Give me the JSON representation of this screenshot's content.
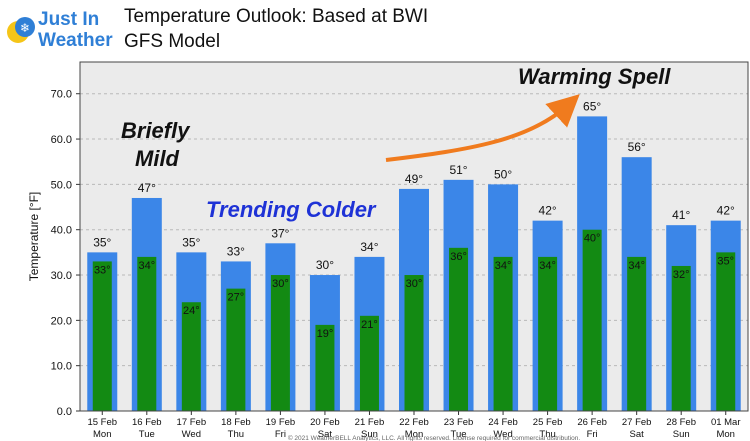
{
  "logo": {
    "line1": "Just In",
    "line2": "Weather"
  },
  "title_line1": "Temperature Outlook: Based at BWI",
  "title_line2": "GFS Model",
  "annotations": {
    "briefly": "Briefly",
    "mild": "Mild",
    "trending_colder": "Trending Colder",
    "warming_spell": "Warming Spell"
  },
  "footer": "© 2021 WeatherBELL Analytics, LLC. All rights reserved. License required for commercial distribution.",
  "colors": {
    "high_bar": "#3b86e8",
    "low_bar": "#138a13",
    "plot_bg": "#ebebeb",
    "colder_text": "#1e32d6",
    "arrow": "#f07b1e"
  },
  "chart_data": {
    "type": "bar",
    "title": "Temperature Outlook: Based at BWI",
    "subtitle": "GFS Model",
    "ylabel": "Temperature [°F]",
    "ylim": [
      0,
      77
    ],
    "yticks": [
      "0.0",
      "10.0",
      "20.0",
      "30.0",
      "40.0",
      "50.0",
      "60.0",
      "70.0"
    ],
    "grid": true,
    "categories": [
      [
        "15 Feb",
        "Mon"
      ],
      [
        "16 Feb",
        "Tue"
      ],
      [
        "17 Feb",
        "Wed"
      ],
      [
        "18 Feb",
        "Thu"
      ],
      [
        "19 Feb",
        "Fri"
      ],
      [
        "20 Feb",
        "Sat"
      ],
      [
        "21 Feb",
        "Sun"
      ],
      [
        "22 Feb",
        "Mon"
      ],
      [
        "23 Feb",
        "Tue"
      ],
      [
        "24 Feb",
        "Wed"
      ],
      [
        "25 Feb",
        "Thu"
      ],
      [
        "26 Feb",
        "Fri"
      ],
      [
        "27 Feb",
        "Sat"
      ],
      [
        "28 Feb",
        "Sun"
      ],
      [
        "01 Mar",
        "Mon"
      ]
    ],
    "series": [
      {
        "values": [
          35,
          47,
          35,
          33,
          37,
          30,
          34,
          49,
          51,
          50,
          42,
          65,
          56,
          41,
          42
        ]
      },
      {
        "values": [
          33,
          34,
          24,
          27,
          30,
          19,
          21,
          30,
          36,
          34,
          34,
          40,
          34,
          32,
          35
        ]
      }
    ],
    "value_suffix": "°"
  }
}
